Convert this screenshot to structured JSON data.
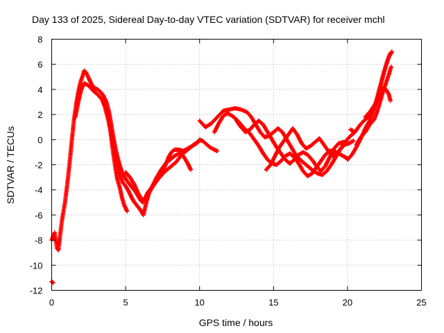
{
  "chart_data": {
    "type": "scatter",
    "title": "Day 133 of 2025, Sidereal Day-to-day VTEC variation (SDTVAR) for receiver mchl",
    "xlabel": "GPS time / hours",
    "ylabel": "SDTVAR / TECUs",
    "xlim": [
      0,
      25
    ],
    "ylim": [
      -12,
      8
    ],
    "xticks": [
      0,
      5,
      10,
      15,
      20,
      25
    ],
    "yticks": [
      -12,
      -10,
      -8,
      -6,
      -4,
      -2,
      0,
      2,
      4,
      6,
      8
    ],
    "grid": true,
    "series_color": "#ff0000",
    "series": [
      {
        "name": "track-1",
        "points": [
          [
            0.0,
            -11.3
          ],
          [
            0.1,
            -11.4
          ]
        ]
      },
      {
        "name": "track-2",
        "points": [
          [
            0.0,
            -8.0
          ],
          [
            0.2,
            -7.4
          ],
          [
            0.35,
            -8.6
          ],
          [
            0.45,
            -8.8
          ],
          [
            0.55,
            -7.8
          ],
          [
            0.7,
            -6.4
          ],
          [
            0.9,
            -5.0
          ],
          [
            1.05,
            -3.6
          ],
          [
            1.2,
            -2.0
          ],
          [
            1.35,
            -0.2
          ],
          [
            1.5,
            1.5
          ],
          [
            1.65,
            2.8
          ],
          [
            1.8,
            3.8
          ],
          [
            1.95,
            4.6
          ],
          [
            2.1,
            5.1
          ],
          [
            2.2,
            5.5
          ],
          [
            2.35,
            5.3
          ],
          [
            2.5,
            4.9
          ],
          [
            2.7,
            4.4
          ],
          [
            2.9,
            4.1
          ],
          [
            3.1,
            4.0
          ],
          [
            3.3,
            3.8
          ],
          [
            3.5,
            3.5
          ],
          [
            3.7,
            3.0
          ],
          [
            3.9,
            2.1
          ],
          [
            4.05,
            1.0
          ],
          [
            4.2,
            0.0
          ],
          [
            4.35,
            -0.9
          ],
          [
            4.5,
            -1.6
          ],
          [
            4.65,
            -2.2
          ],
          [
            4.8,
            -2.7
          ],
          [
            4.95,
            -3.0
          ],
          [
            5.1,
            -3.3
          ],
          [
            5.3,
            -3.6
          ],
          [
            5.5,
            -3.9
          ],
          [
            5.7,
            -4.2
          ],
          [
            5.85,
            -4.5
          ],
          [
            6.0,
            -4.8
          ],
          [
            6.15,
            -5.0
          ],
          [
            6.3,
            -4.7
          ],
          [
            6.5,
            -4.2
          ],
          [
            6.7,
            -3.9
          ],
          [
            6.9,
            -3.6
          ],
          [
            7.1,
            -3.3
          ],
          [
            7.3,
            -2.9
          ],
          [
            7.5,
            -2.5
          ],
          [
            7.7,
            -2.0
          ],
          [
            7.9,
            -1.4
          ],
          [
            8.1,
            -1.0
          ],
          [
            8.3,
            -0.8
          ],
          [
            8.6,
            -0.8
          ],
          [
            8.9,
            -0.9
          ],
          [
            9.2,
            -0.7
          ],
          [
            9.5,
            -0.5
          ],
          [
            9.8,
            -0.3
          ],
          [
            10.0,
            0.0
          ],
          [
            10.2,
            -0.1
          ],
          [
            10.4,
            -0.3
          ],
          [
            10.7,
            -0.6
          ],
          [
            11.0,
            -0.8
          ],
          [
            11.2,
            -0.9
          ]
        ]
      },
      {
        "name": "track-3",
        "points": [
          [
            1.6,
            1.8
          ],
          [
            1.8,
            3.0
          ],
          [
            2.0,
            4.0
          ],
          [
            2.2,
            4.5
          ],
          [
            2.5,
            4.3
          ],
          [
            2.8,
            3.9
          ],
          [
            3.1,
            3.6
          ],
          [
            3.4,
            3.2
          ],
          [
            3.6,
            2.6
          ],
          [
            3.8,
            1.7
          ],
          [
            4.0,
            0.6
          ],
          [
            4.2,
            -0.6
          ],
          [
            4.4,
            -1.8
          ],
          [
            4.6,
            -2.8
          ],
          [
            4.8,
            -3.4
          ],
          [
            5.0,
            -3.7
          ],
          [
            5.2,
            -4.1
          ],
          [
            5.4,
            -4.6
          ],
          [
            5.6,
            -5.0
          ],
          [
            5.8,
            -5.3
          ],
          [
            6.0,
            -5.6
          ],
          [
            6.2,
            -6.0
          ],
          [
            6.4,
            -5.0
          ],
          [
            6.6,
            -4.2
          ],
          [
            6.8,
            -3.8
          ],
          [
            7.0,
            -3.4
          ],
          [
            7.3,
            -3.0
          ],
          [
            7.6,
            -2.6
          ],
          [
            8.0,
            -2.2
          ],
          [
            8.4,
            -1.8
          ],
          [
            8.8,
            -1.2
          ],
          [
            9.2,
            -0.8
          ],
          [
            9.6,
            -0.4
          ],
          [
            10.0,
            -0.1
          ]
        ]
      },
      {
        "name": "track-4",
        "points": [
          [
            3.5,
            3.0
          ],
          [
            3.7,
            2.5
          ],
          [
            3.9,
            1.5
          ],
          [
            4.0,
            0.4
          ],
          [
            4.15,
            -1.0
          ],
          [
            4.3,
            -2.2
          ],
          [
            4.45,
            -3.2
          ],
          [
            4.6,
            -3.8
          ],
          [
            4.75,
            -4.6
          ],
          [
            4.9,
            -5.2
          ],
          [
            5.1,
            -5.7
          ]
        ]
      },
      {
        "name": "track-5",
        "points": [
          [
            5.0,
            -2.6
          ],
          [
            5.3,
            -3.0
          ],
          [
            5.6,
            -3.6
          ],
          [
            5.9,
            -4.4
          ],
          [
            6.2,
            -4.9
          ],
          [
            6.5,
            -4.4
          ],
          [
            6.8,
            -3.7
          ],
          [
            7.1,
            -3.0
          ],
          [
            7.4,
            -2.4
          ],
          [
            7.7,
            -1.9
          ],
          [
            8.0,
            -1.6
          ],
          [
            8.3,
            -1.3
          ],
          [
            8.6,
            -1.1
          ],
          [
            8.9,
            -1.3
          ],
          [
            9.2,
            -1.9
          ],
          [
            9.4,
            -2.4
          ]
        ]
      },
      {
        "name": "track-6",
        "points": [
          [
            10.0,
            1.5
          ],
          [
            10.4,
            1.0
          ],
          [
            10.8,
            1.3
          ],
          [
            11.2,
            1.8
          ],
          [
            11.6,
            2.3
          ],
          [
            12.0,
            2.4
          ],
          [
            12.4,
            2.5
          ],
          [
            12.8,
            2.4
          ],
          [
            13.2,
            2.2
          ],
          [
            13.5,
            1.8
          ],
          [
            13.8,
            1.2
          ],
          [
            14.1,
            0.6
          ],
          [
            14.4,
            0.2
          ],
          [
            14.7,
            0.3
          ],
          [
            15.0,
            0.6
          ],
          [
            15.3,
            0.9
          ],
          [
            15.6,
            0.6
          ],
          [
            15.9,
            0.0
          ],
          [
            16.2,
            -0.6
          ],
          [
            16.5,
            -1.2
          ],
          [
            16.8,
            -1.6
          ],
          [
            17.1,
            -1.9
          ],
          [
            17.4,
            -2.2
          ],
          [
            17.7,
            -2.5
          ],
          [
            18.0,
            -2.7
          ],
          [
            18.3,
            -2.8
          ],
          [
            18.6,
            -2.5
          ],
          [
            18.9,
            -2.0
          ],
          [
            19.2,
            -1.4
          ],
          [
            19.5,
            -0.8
          ],
          [
            19.8,
            -0.4
          ],
          [
            20.1,
            -0.3
          ],
          [
            20.4,
            -0.1
          ]
        ]
      },
      {
        "name": "track-7",
        "points": [
          [
            11.0,
            0.6
          ],
          [
            11.3,
            1.3
          ],
          [
            11.6,
            1.9
          ],
          [
            11.9,
            2.1
          ],
          [
            12.2,
            1.9
          ],
          [
            12.5,
            1.6
          ],
          [
            12.8,
            1.2
          ],
          [
            13.1,
            0.8
          ],
          [
            13.4,
            0.5
          ],
          [
            13.7,
            0.0
          ],
          [
            14.0,
            -0.5
          ],
          [
            14.3,
            -1.1
          ],
          [
            14.6,
            -1.6
          ],
          [
            14.9,
            -1.9
          ],
          [
            15.2,
            -2.0
          ],
          [
            15.5,
            -1.7
          ],
          [
            15.8,
            -1.3
          ],
          [
            16.1,
            -1.1
          ],
          [
            16.4,
            -1.4
          ],
          [
            16.7,
            -1.9
          ],
          [
            17.0,
            -2.5
          ],
          [
            17.3,
            -2.9
          ],
          [
            17.6,
            -2.7
          ],
          [
            17.9,
            -2.2
          ],
          [
            18.2,
            -1.7
          ],
          [
            18.5,
            -1.2
          ],
          [
            18.8,
            -0.9
          ],
          [
            19.1,
            -0.9
          ],
          [
            19.4,
            -1.1
          ],
          [
            19.7,
            -1.3
          ],
          [
            20.0,
            -1.5
          ]
        ]
      },
      {
        "name": "track-8",
        "points": [
          [
            12.5,
            1.5
          ],
          [
            12.8,
            1.0
          ],
          [
            13.1,
            0.6
          ],
          [
            13.4,
            0.8
          ],
          [
            13.7,
            1.2
          ],
          [
            14.0,
            1.5
          ],
          [
            14.3,
            1.2
          ],
          [
            14.6,
            0.6
          ],
          [
            14.9,
            0.0
          ],
          [
            15.2,
            -0.6
          ],
          [
            15.5,
            -1.1
          ],
          [
            15.8,
            -1.6
          ],
          [
            16.1,
            -1.9
          ],
          [
            16.4,
            -1.6
          ],
          [
            16.7,
            -1.2
          ],
          [
            17.0,
            -1.0
          ],
          [
            17.3,
            -1.2
          ],
          [
            17.6,
            -1.6
          ],
          [
            17.9,
            -2.1
          ],
          [
            18.2,
            -2.5
          ],
          [
            18.5,
            -2.1
          ],
          [
            18.8,
            -1.4
          ],
          [
            19.1,
            -0.7
          ],
          [
            19.4,
            -0.3
          ],
          [
            19.7,
            -0.2
          ],
          [
            20.0,
            -0.2
          ]
        ]
      },
      {
        "name": "track-9",
        "points": [
          [
            14.5,
            -2.4
          ],
          [
            14.8,
            -2.0
          ],
          [
            15.1,
            -1.3
          ],
          [
            15.4,
            -0.6
          ],
          [
            15.7,
            -0.1
          ],
          [
            16.0,
            0.4
          ],
          [
            16.3,
            0.9
          ],
          [
            16.6,
            0.4
          ],
          [
            16.9,
            -0.3
          ],
          [
            17.2,
            -0.7
          ],
          [
            17.5,
            -0.5
          ],
          [
            17.8,
            -0.2
          ],
          [
            18.1,
            0.1
          ],
          [
            18.4,
            -0.4
          ],
          [
            18.7,
            -0.9
          ],
          [
            19.0,
            -1.3
          ],
          [
            19.3,
            -1.1
          ],
          [
            19.6,
            -0.6
          ],
          [
            19.9,
            -0.1
          ],
          [
            20.2,
            0.3
          ],
          [
            20.5,
            0.6
          ]
        ]
      },
      {
        "name": "track-10",
        "points": [
          [
            20.2,
            0.8
          ],
          [
            20.5,
            0.6
          ],
          [
            20.8,
            1.1
          ],
          [
            21.1,
            1.5
          ],
          [
            21.4,
            1.8
          ],
          [
            21.7,
            2.2
          ],
          [
            21.9,
            2.9
          ],
          [
            22.1,
            3.7
          ],
          [
            22.3,
            4.6
          ],
          [
            22.5,
            5.5
          ],
          [
            22.7,
            6.3
          ],
          [
            22.9,
            6.9
          ]
        ]
      },
      {
        "name": "track-11",
        "points": [
          [
            20.0,
            -1.6
          ],
          [
            20.3,
            -1.2
          ],
          [
            20.6,
            -0.6
          ],
          [
            20.9,
            0.1
          ],
          [
            21.2,
            0.9
          ],
          [
            21.5,
            1.5
          ],
          [
            21.8,
            2.4
          ],
          [
            22.0,
            3.3
          ],
          [
            22.2,
            4.2
          ],
          [
            22.4,
            5.1
          ],
          [
            22.6,
            5.9
          ],
          [
            22.8,
            6.6
          ],
          [
            23.0,
            7.0
          ]
        ]
      },
      {
        "name": "track-12",
        "points": [
          [
            20.6,
            -0.4
          ],
          [
            20.9,
            0.2
          ],
          [
            21.2,
            0.6
          ],
          [
            21.5,
            1.2
          ],
          [
            21.8,
            1.6
          ],
          [
            22.0,
            2.2
          ],
          [
            22.2,
            3.0
          ],
          [
            22.4,
            3.8
          ],
          [
            22.6,
            4.5
          ],
          [
            22.8,
            5.2
          ],
          [
            22.95,
            5.8
          ]
        ]
      },
      {
        "name": "track-13",
        "points": [
          [
            21.2,
            1.8
          ],
          [
            21.5,
            2.2
          ],
          [
            21.8,
            2.7
          ],
          [
            22.0,
            3.1
          ],
          [
            22.2,
            3.6
          ],
          [
            22.4,
            4.1
          ],
          [
            22.6,
            4.0
          ],
          [
            22.8,
            3.6
          ],
          [
            22.9,
            3.1
          ]
        ]
      }
    ]
  }
}
